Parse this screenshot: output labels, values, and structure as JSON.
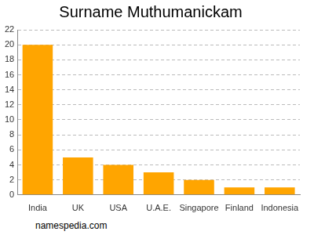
{
  "chart_data": {
    "type": "bar",
    "title": "Surname Muthumanickam",
    "categories": [
      "India",
      "UK",
      "USA",
      "U.A.E.",
      "Singapore",
      "Finland",
      "Indonesia"
    ],
    "values": [
      20,
      5,
      4,
      3,
      2,
      1,
      1
    ],
    "color": "#ffa500",
    "ylim": [
      0,
      22
    ],
    "yticks": [
      0,
      2,
      4,
      6,
      8,
      10,
      12,
      14,
      16,
      18,
      20,
      22
    ],
    "grid": true,
    "annotations": [
      "namespedia.com"
    ]
  }
}
